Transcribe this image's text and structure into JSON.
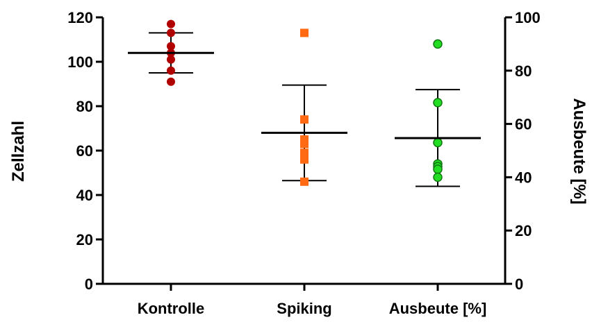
{
  "chart_data": {
    "type": "scatter",
    "categories": [
      "Kontrolle",
      "Spiking",
      "Ausbeute [%]"
    ],
    "left_axis": {
      "label": "Zellzahl",
      "ylim": [
        0,
        120
      ],
      "ticks": [
        0,
        20,
        40,
        60,
        80,
        100,
        120
      ]
    },
    "right_axis": {
      "label": "Ausbeute [%]",
      "ylim": [
        0,
        100
      ],
      "ticks": [
        0,
        20,
        40,
        60,
        80,
        100
      ]
    },
    "series": [
      {
        "category": "Kontrolle",
        "axis": "left",
        "marker": "circle",
        "color": "#b00000",
        "values": [
          117,
          113,
          107,
          104,
          101,
          96,
          91
        ],
        "mean": 104,
        "err_low": 95,
        "err_high": 113
      },
      {
        "category": "Spiking",
        "axis": "left",
        "marker": "square",
        "color": "#ff6a13",
        "values": [
          113,
          74,
          65,
          63,
          59,
          56,
          46
        ],
        "mean": 68,
        "err_low": 46.5,
        "err_high": 89.5
      },
      {
        "category": "Ausbeute [%]",
        "axis": "right",
        "marker": "circle",
        "color": "#22dd22",
        "values": [
          90,
          68,
          53,
          45,
          44,
          43,
          40
        ],
        "mean": 54.7,
        "err_low": 36.6,
        "err_high": 72.9
      }
    ],
    "grid": false,
    "legend": "none"
  }
}
